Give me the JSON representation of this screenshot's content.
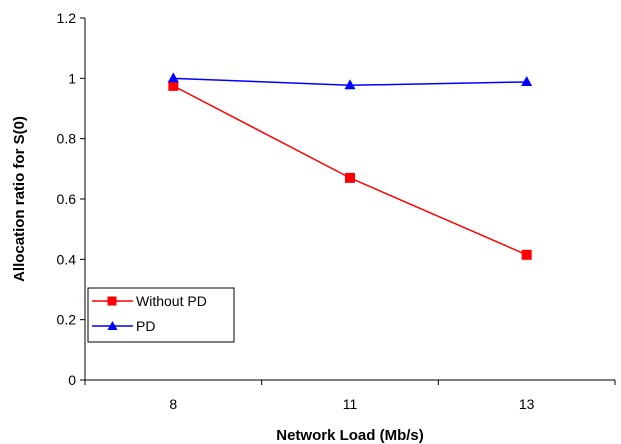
{
  "chart_data": {
    "type": "line",
    "title": "",
    "xlabel": "Network Load (Mb/s)",
    "ylabel": "Allocation ratio for S(0)",
    "categories": [
      "8",
      "11",
      "13"
    ],
    "ylim": [
      0,
      1.2
    ],
    "yticks": [
      "0",
      "0.2",
      "0.4",
      "0.6",
      "0.8",
      "1",
      "1.2"
    ],
    "grid": false,
    "legend_position": "bottom-left",
    "series": [
      {
        "name": "Without PD",
        "values": [
          0.975,
          0.67,
          0.415
        ],
        "color": "#ff0000",
        "marker": "square"
      },
      {
        "name": "PD",
        "values": [
          1.0,
          0.977,
          0.988
        ],
        "color": "#0000ff",
        "marker": "triangle"
      }
    ]
  }
}
